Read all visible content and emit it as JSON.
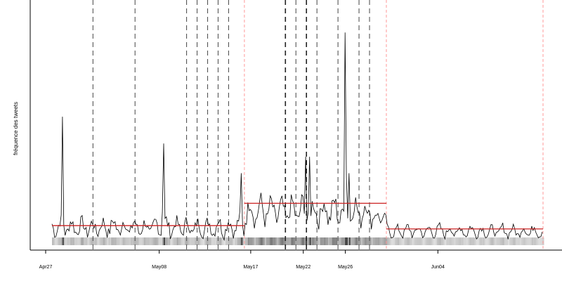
{
  "chart_data": {
    "type": "line",
    "title": "",
    "xlabel": "",
    "ylabel": "fréquence des tweets",
    "x_unit": "days since Apr 27",
    "xlim": [
      -0.5,
      47.5
    ],
    "ylim": [
      0,
      1.0
    ],
    "x_ticks": [
      {
        "label": "Apr27",
        "x": 0
      },
      {
        "label": "May08",
        "x": 10.8
      },
      {
        "label": "May17",
        "x": 19.5
      },
      {
        "label": "May22",
        "x": 24.5
      },
      {
        "label": "May26",
        "x": 28.5
      },
      {
        "label": "Jun04",
        "x": 37.3
      }
    ],
    "series_start_x": 0.6,
    "series_end_x": 47.3,
    "series_step": 0.125,
    "daily_amplitude": [
      0.055,
      0.06,
      0.055,
      0.055,
      0.05,
      0.055,
      0.06,
      0.055,
      0.055,
      0.05,
      0.055,
      0.06,
      0.055,
      0.055,
      0.05,
      0.055,
      0.06,
      0.055,
      0.07,
      0.085,
      0.09,
      0.085,
      0.08,
      0.085,
      0.09,
      0.08,
      0.085,
      0.09,
      0.08,
      0.085,
      0.08,
      0.035,
      0.035,
      0.035,
      0.04,
      0.035,
      0.035,
      0.04,
      0.035,
      0.035,
      0.04,
      0.035,
      0.035,
      0.04,
      0.035,
      0.035,
      0.04,
      0.035
    ],
    "peaks": [
      {
        "x": 1.6,
        "y": 0.54
      },
      {
        "x": 11.2,
        "y": 0.46
      },
      {
        "x": 18.6,
        "y": 0.3
      },
      {
        "x": 24.7,
        "y": 0.4
      },
      {
        "x": 25.1,
        "y": 0.37
      },
      {
        "x": 28.5,
        "y": 0.97
      },
      {
        "x": 28.85,
        "y": 0.3
      }
    ],
    "segment_means": [
      {
        "x_start": 0.6,
        "x_end": 18.9,
        "y": 0.077
      },
      {
        "x_start": 18.9,
        "x_end": 32.4,
        "y": 0.172
      },
      {
        "x_start": 32.4,
        "x_end": 47.3,
        "y": 0.063
      }
    ],
    "changepoints_red": [
      18.9,
      32.4,
      47.3
    ],
    "events_dashed": [
      4.5,
      8.5,
      13.4,
      14.4,
      15.4,
      16.4,
      17.4,
      22.8,
      23.8,
      24.8,
      25.8,
      27.8,
      29.8,
      30.8
    ],
    "events_dashed_bold": [
      22.8,
      24.8
    ],
    "colors": {
      "line": "#000000",
      "segment": "#cc2222",
      "changepoint": "#ff9999",
      "event": "#555555",
      "axis": "#000000"
    }
  }
}
